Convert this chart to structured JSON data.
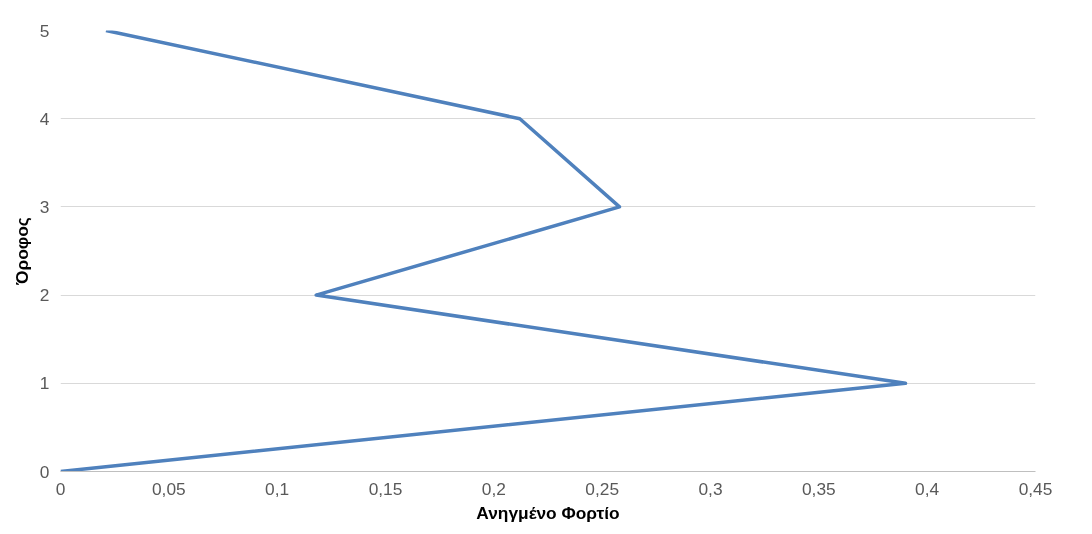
{
  "chart_data": {
    "type": "line",
    "xlabel": "Ανηγμένο Φορτίο",
    "ylabel": "Όροφος",
    "x": [
      0,
      0.39,
      0.118,
      0.258,
      0.212,
      0.021
    ],
    "series": [
      {
        "color": "#4f81bd",
        "values": [
          0,
          1,
          2,
          3,
          4,
          5
        ]
      }
    ],
    "xlim": [
      0,
      0.45
    ],
    "ylim": [
      0,
      5
    ],
    "xticks": [
      0,
      {
        "value": 0.05,
        "label": "0,05"
      },
      {
        "value": 0.1,
        "label": "0,1"
      },
      {
        "value": 0.15,
        "label": "0,15"
      },
      {
        "value": 0.2,
        "label": "0,2"
      },
      {
        "value": 0.25,
        "label": "0,25"
      },
      {
        "value": 0.3,
        "label": "0,3"
      },
      {
        "value": 0.35,
        "label": "0,35"
      },
      {
        "value": 0.4,
        "label": "0,4"
      },
      {
        "value": 0.45,
        "label": "0,45"
      }
    ],
    "yticks": [
      0,
      1,
      2,
      3,
      4,
      5
    ],
    "grid": "y",
    "marker": "none",
    "line_style": "solid"
  }
}
